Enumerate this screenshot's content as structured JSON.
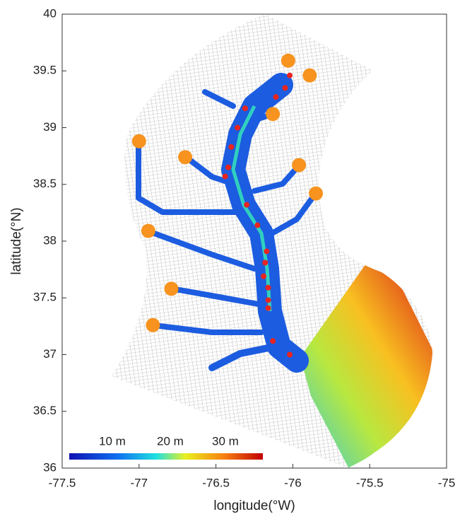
{
  "chart_data": {
    "type": "scatter",
    "xlabel": "longitude(°W)",
    "ylabel": "latitude(°N)",
    "xlim": [
      -77.5,
      -75
    ],
    "xticks": [
      -77.5,
      -77,
      -76.5,
      -76,
      -75.5,
      -75
    ],
    "ylim": [
      36,
      40
    ],
    "yticks": [
      36,
      36.5,
      37,
      37.5,
      38,
      38.5,
      39,
      39.5,
      40
    ],
    "colorbar_labels": [
      "10 m",
      "20 m",
      "30 m"
    ],
    "series": [
      {
        "color": "#f7931e",
        "size": 10,
        "x": [
          -76.03,
          -75.89,
          -76.13,
          -77.0,
          -76.7,
          -75.96,
          -75.85,
          -76.94,
          -76.79,
          -76.91
        ],
        "y": [
          39.59,
          39.46,
          39.12,
          38.88,
          38.74,
          38.67,
          38.42,
          38.09,
          37.58,
          37.26
        ]
      },
      {
        "color": "#e8241f",
        "size": 4,
        "x": [
          -76.02,
          -76.05,
          -76.11,
          -76.31,
          -76.36,
          -76.4,
          -76.42,
          -76.44,
          -76.3,
          -76.23,
          -76.17,
          -76.18,
          -76.19,
          -76.16,
          -76.16,
          -76.16,
          -76.13,
          -76.02
        ],
        "y": [
          39.46,
          39.35,
          39.27,
          39.17,
          39.0,
          38.83,
          38.65,
          38.57,
          38.32,
          38.14,
          37.91,
          37.81,
          37.69,
          37.59,
          37.48,
          37.41,
          37.12,
          37.0
        ]
      }
    ]
  }
}
